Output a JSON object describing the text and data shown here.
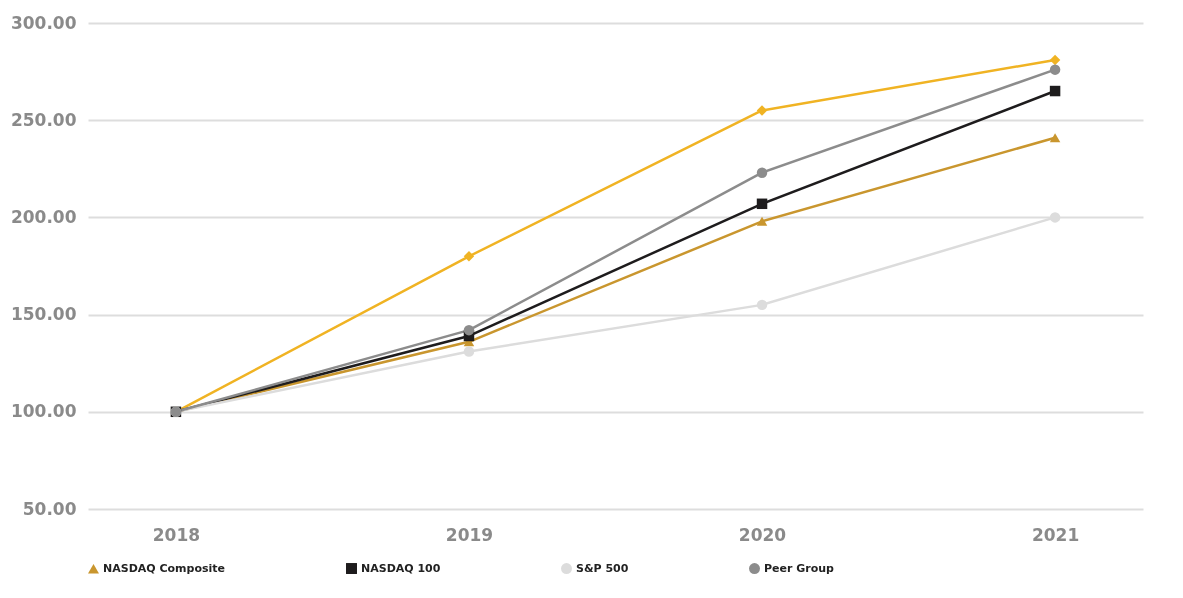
{
  "chart_data": {
    "type": "line",
    "categories": [
      "2018",
      "2019",
      "2020",
      "2021"
    ],
    "series": [
      {
        "color": "#f0b323",
        "marker": "diamond",
        "values": [
          100,
          180,
          255,
          281
        ]
      },
      {
        "name": "NASDAQ Composite",
        "color": "#c9962e",
        "marker": "triangle",
        "values": [
          100,
          136,
          198,
          241
        ]
      },
      {
        "name": "NASDAQ 100",
        "color": "#1e1c1d",
        "marker": "square",
        "values": [
          100,
          139,
          207,
          265
        ]
      },
      {
        "name": "S&P 500",
        "color": "#dcdcdc",
        "marker": "circle",
        "values": [
          100,
          131,
          155,
          200
        ]
      },
      {
        "name": "Peer Group",
        "color": "#8c8c8c",
        "marker": "circle",
        "values": [
          100,
          142,
          223,
          276
        ]
      }
    ],
    "ylim": [
      50,
      300
    ],
    "yticks": [
      {
        "value": 50,
        "label": "50.00"
      },
      {
        "value": 100,
        "label": "100.00"
      },
      {
        "value": 150,
        "label": "150.00"
      },
      {
        "value": 200,
        "label": "200.00"
      },
      {
        "value": 250,
        "label": "250.00"
      },
      {
        "value": 300,
        "label": "300.00"
      }
    ],
    "grid": "y",
    "legend": "bottom",
    "line_style": "solid"
  }
}
